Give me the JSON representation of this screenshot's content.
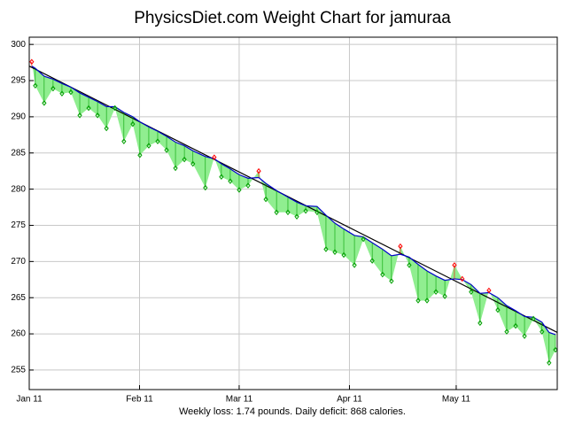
{
  "chart_data": {
    "type": "weight",
    "title": "PhysicsDiet.com Weight Chart for jamuraa",
    "subtitle": "Weekly loss: 1.74 pounds. Daily deficit: 868 calories.",
    "xlim": [
      0,
      148.4
    ],
    "ylim": [
      252.3,
      301.0
    ],
    "xticks": [
      {
        "value": 0,
        "label": "Jan 11"
      },
      {
        "value": 31,
        "label": "Feb 11"
      },
      {
        "value": 59,
        "label": "Mar 11"
      },
      {
        "value": 90,
        "label": "Apr 11"
      },
      {
        "value": 120,
        "label": "May 11"
      }
    ],
    "yticks": [
      255,
      260,
      265,
      270,
      275,
      280,
      285,
      290,
      295,
      300
    ],
    "grid": true,
    "above_color": "#ff0000",
    "below_color": "#00a000",
    "fill_color": "#90ee90",
    "series": [
      {
        "name": "weight",
        "color": "#00a000",
        "x": [
          0.7,
          1.7,
          4.2,
          6.7,
          9.2,
          11.7,
          14.2,
          16.7,
          19.2,
          21.7,
          24.1,
          26.6,
          29.1,
          31.1,
          33.6,
          36.1,
          38.6,
          41.1,
          43.6,
          46.0,
          49.5,
          52.0,
          54.0,
          56.5,
          59.0,
          61.5,
          64.5,
          66.5,
          69.5,
          72.7,
          75.2,
          77.7,
          80.9,
          83.4,
          85.9,
          88.4,
          91.4,
          93.9,
          96.4,
          99.3,
          101.8,
          104.3,
          106.8,
          109.3,
          111.8,
          114.3,
          116.8,
          119.5,
          121.7,
          124.2,
          126.7,
          129.2,
          131.7,
          134.2,
          136.7,
          139.2,
          141.7,
          144.1,
          146.1,
          147.9
        ],
        "values": [
          297.6,
          294.3,
          291.9,
          293.9,
          293.2,
          293.4,
          290.2,
          291.2,
          290.2,
          288.4,
          291.2,
          286.6,
          289.0,
          284.7,
          286.0,
          286.6,
          285.4,
          282.9,
          284.1,
          283.5,
          280.2,
          284.4,
          281.7,
          281.1,
          279.9,
          280.5,
          282.5,
          278.6,
          276.8,
          276.8,
          276.2,
          277.0,
          276.8,
          271.7,
          271.3,
          270.9,
          269.5,
          273.1,
          270.1,
          268.2,
          267.3,
          272.1,
          269.5,
          264.6,
          264.6,
          265.8,
          265.2,
          269.5,
          267.6,
          265.8,
          261.5,
          266.0,
          263.3,
          260.3,
          261.1,
          259.7,
          262.1,
          260.3,
          256.0,
          257.8
        ]
      },
      {
        "name": "trend",
        "color": "#0000cc",
        "x": [
          0.7,
          1.7,
          4.2,
          6.7,
          9.2,
          11.7,
          14.2,
          16.7,
          19.2,
          21.7,
          24.1,
          26.6,
          29.1,
          31.1,
          33.6,
          36.1,
          38.6,
          41.1,
          43.6,
          46.0,
          49.5,
          52.0,
          54.0,
          56.5,
          59.0,
          61.5,
          64.5,
          66.5,
          69.5,
          72.7,
          75.2,
          77.7,
          80.9,
          83.4,
          85.9,
          88.4,
          91.4,
          93.9,
          96.4,
          99.3,
          101.8,
          104.3,
          106.8,
          109.3,
          111.8,
          114.3,
          116.8,
          119.5,
          121.7,
          124.2,
          126.7,
          129.2,
          131.7,
          134.2,
          136.7,
          139.2,
          141.7,
          144.1,
          146.1,
          147.9
        ],
        "values": [
          297.0,
          296.7,
          295.6,
          295.2,
          294.6,
          294.1,
          293.3,
          292.7,
          292.1,
          291.4,
          291.4,
          290.6,
          290.0,
          289.3,
          288.6,
          288.0,
          287.3,
          286.5,
          286.0,
          285.3,
          284.5,
          284.2,
          283.5,
          282.8,
          282.0,
          281.5,
          281.6,
          280.8,
          279.8,
          278.9,
          278.2,
          277.7,
          277.6,
          276.4,
          275.3,
          274.5,
          273.6,
          273.4,
          272.6,
          271.7,
          270.8,
          271.0,
          270.6,
          269.6,
          268.7,
          268.0,
          267.4,
          267.6,
          267.5,
          266.8,
          265.6,
          265.7,
          265.0,
          263.9,
          263.2,
          262.4,
          262.3,
          261.6,
          260.2,
          259.9
        ]
      },
      {
        "name": "fit",
        "color": "#000000",
        "x": [
          0,
          148.4
        ],
        "values": [
          297.0,
          260.2
        ]
      }
    ]
  }
}
